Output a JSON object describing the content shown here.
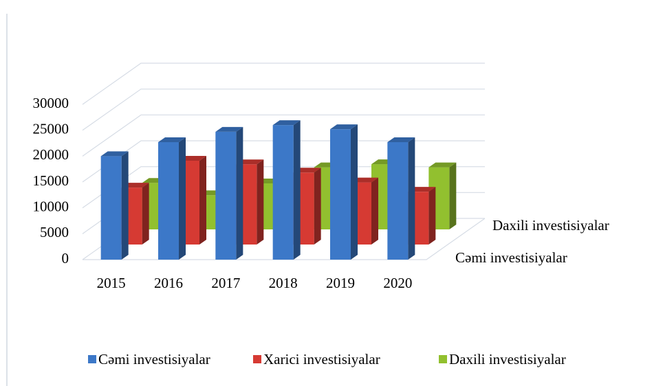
{
  "chart_data": {
    "type": "bar3d",
    "categories": [
      "2015",
      "2016",
      "2017",
      "2018",
      "2019",
      "2020"
    ],
    "series": [
      {
        "name": "Cəmi investisiyalar",
        "color": "#3c78c8",
        "values": [
          20000,
          22700,
          24700,
          26000,
          25200,
          22700
        ]
      },
      {
        "name": "Xarici investisiyalar",
        "color": "#d63a33",
        "values": [
          11000,
          16200,
          15500,
          13900,
          12000,
          10200
        ]
      },
      {
        "name": "Daxili investisiyalar",
        "color": "#92c02f",
        "values": [
          9000,
          6600,
          8900,
          12000,
          12600,
          12000
        ]
      }
    ],
    "ylim": [
      0,
      30000
    ],
    "yticks": [
      0,
      5000,
      10000,
      15000,
      20000,
      25000,
      30000
    ],
    "grid": true,
    "legend": "bottom"
  }
}
